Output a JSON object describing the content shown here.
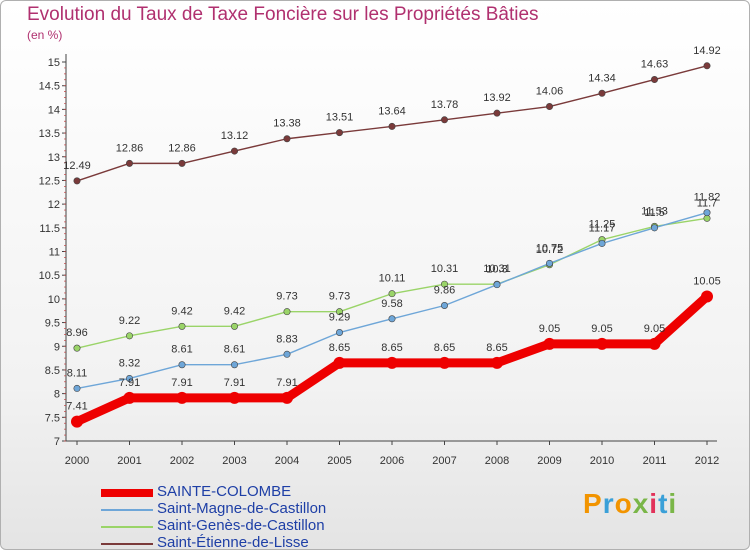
{
  "header": {
    "title": "Evolution du Taux de Taxe Foncière sur les Propriétés Bâties",
    "unit": "(en %)"
  },
  "brand": {
    "name": "Proxiti",
    "colors": [
      "#f29400",
      "#3aa0d8",
      "#f29400",
      "#7ab648",
      "#e2325a",
      "#3aa0d8",
      "#7ab648"
    ]
  },
  "chart_data": {
    "type": "line",
    "categories": [
      "2000",
      "2001",
      "2002",
      "2003",
      "2004",
      "2005",
      "2006",
      "2007",
      "2008",
      "2009",
      "2010",
      "2011",
      "2012"
    ],
    "ylim": [
      7,
      15
    ],
    "yticks": [
      "7",
      "7.5",
      "8",
      "8.5",
      "9",
      "9.5",
      "10",
      "10.5",
      "11",
      "11.5",
      "12",
      "12.5",
      "13",
      "13.5",
      "14",
      "14.5",
      "15"
    ],
    "grid": false,
    "legend_position": "bottom-left",
    "series": [
      {
        "name": "SAINTE-COLOMBE",
        "color": "#ee0000",
        "values": [
          7.41,
          7.91,
          7.91,
          7.91,
          7.91,
          8.65,
          8.65,
          8.65,
          8.65,
          9.05,
          9.05,
          9.05,
          10.05
        ],
        "labels": [
          "7.41",
          "7.91",
          "7.91",
          "7.91",
          "7.91",
          "8.65",
          "8.65",
          "8.65",
          "8.65",
          "9.05",
          "9.05",
          "9.05",
          "10.05"
        ]
      },
      {
        "name": "Saint-Magne-de-Castillon",
        "color": "#6ea6d8",
        "values": [
          8.11,
          8.32,
          8.61,
          8.61,
          8.83,
          9.29,
          9.58,
          9.86,
          10.3,
          10.75,
          11.17,
          11.5,
          11.82
        ],
        "labels": [
          "8.11",
          "8.32",
          "8.61",
          "8.61",
          "8.83",
          "9.29",
          "9.58",
          "9.86",
          "10.3",
          "10.75",
          "11.17",
          "11.5",
          "11.82"
        ]
      },
      {
        "name": "Saint-Genès-de-Castillon",
        "color": "#9ad468",
        "values": [
          8.96,
          9.22,
          9.42,
          9.42,
          9.73,
          9.73,
          10.11,
          10.31,
          10.31,
          10.72,
          11.25,
          11.53,
          11.7
        ],
        "labels": [
          "8.96",
          "9.22",
          "9.42",
          "9.42",
          "9.73",
          "9.73",
          "10.11",
          "10.31",
          "10.31",
          "10.72",
          "11.25",
          "11.53",
          "11.7"
        ]
      },
      {
        "name": "Saint-Étienne-de-Lisse",
        "color": "#7a3a3a",
        "values": [
          12.49,
          12.86,
          12.86,
          13.12,
          13.38,
          13.51,
          13.64,
          13.78,
          13.92,
          14.06,
          14.34,
          14.63,
          14.92
        ],
        "labels": [
          "12.49",
          "12.86",
          "12.86",
          "13.12",
          "13.38",
          "13.51",
          "13.64",
          "13.78",
          "13.92",
          "14.06",
          "14.34",
          "14.63",
          "14.92"
        ]
      }
    ]
  }
}
